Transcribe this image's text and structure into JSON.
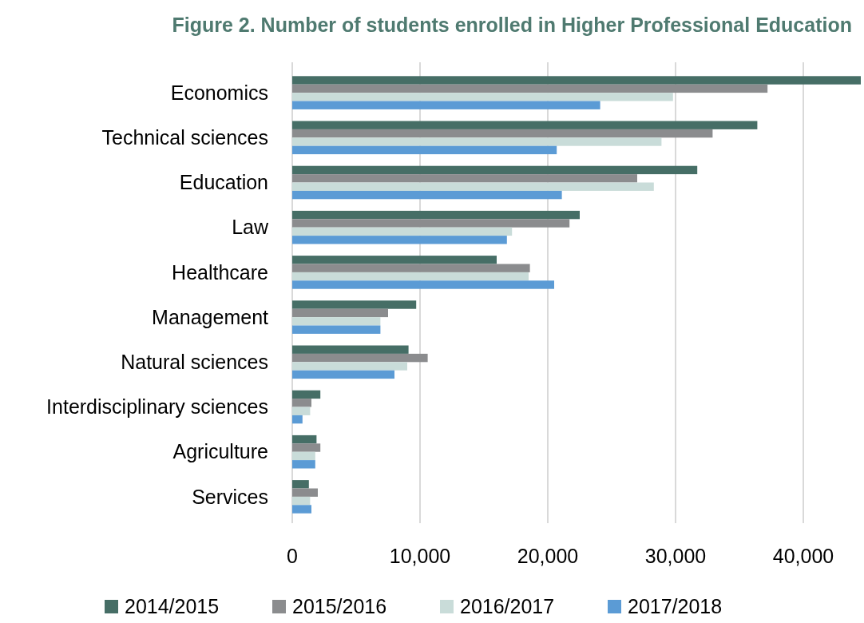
{
  "chart_data": {
    "type": "bar",
    "orientation": "horizontal",
    "title": "Figure 2. Number of students enrolled in Higher Professional Education",
    "categories": [
      "Economics",
      "Technical sciences",
      "Education",
      "Law",
      "Healthcare",
      "Management",
      "Natural sciences",
      "Interdisciplinary sciences",
      "Agriculture",
      "Services"
    ],
    "series": [
      {
        "name": "2014/2015",
        "color": "#466e66",
        "values": [
          44500,
          36400,
          31700,
          22500,
          16000,
          9700,
          9100,
          2200,
          1900,
          1300
        ]
      },
      {
        "name": "2015/2016",
        "color": "#8b8c8e",
        "values": [
          37200,
          32900,
          27000,
          21700,
          18600,
          7500,
          10600,
          1500,
          2200,
          2000
        ]
      },
      {
        "name": "2016/2017",
        "color": "#c9dcd9",
        "values": [
          29800,
          28900,
          28300,
          17200,
          18500,
          6900,
          9000,
          1400,
          1800,
          1400
        ]
      },
      {
        "name": "2017/2018",
        "color": "#5b9bd5",
        "values": [
          24100,
          20700,
          21100,
          16800,
          20500,
          6900,
          8000,
          800,
          1800,
          1500
        ]
      }
    ],
    "xlim": [
      0,
      44500
    ],
    "xticks": [
      0,
      {
        "value": 10000,
        "label": "10,000"
      },
      {
        "value": 20000,
        "label": "20,000"
      },
      {
        "value": 30000,
        "label": "30,000"
      },
      {
        "value": 40000,
        "label": "40,000"
      }
    ],
    "grid": "x",
    "legend": "bottom"
  }
}
